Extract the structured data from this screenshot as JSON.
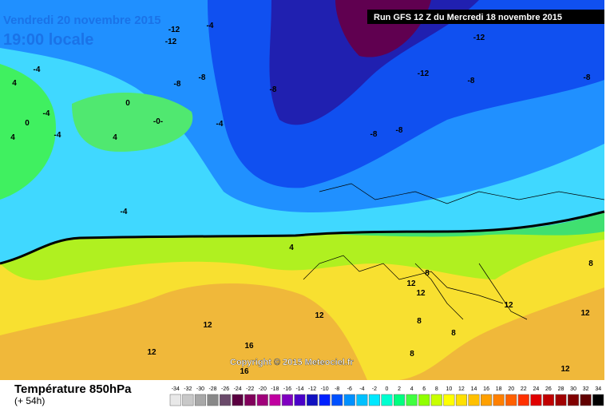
{
  "header": {
    "date": "Vendredi 20 novembre 2015",
    "time": "19:00 locale",
    "run": "Run GFS 12 Z du Mercredi 18 novembre 2015"
  },
  "map": {
    "contour_labels": [
      "-12",
      "-4",
      "-12",
      "-8",
      "-8",
      "-12",
      "-12",
      "-8",
      "-8",
      "-8",
      "-8",
      "-8",
      "-4",
      "-4",
      "-4",
      "0",
      "-0-",
      "4",
      "4",
      "-4",
      "4",
      "-4",
      "0",
      "4",
      "12",
      "8",
      "12",
      "12",
      "12",
      "8",
      "12",
      "8",
      "12",
      "8",
      "8",
      "16",
      "16",
      "12",
      "12"
    ],
    "copyright": "Copyright © 2015 Meteociel.fr"
  },
  "legend": {
    "title": "Température 850hPa",
    "subtitle": "(+ 54h)",
    "scale": [
      -34,
      -32,
      -30,
      -28,
      -26,
      -24,
      -22,
      -20,
      -18,
      -16,
      -14,
      -12,
      -10,
      -8,
      -6,
      -4,
      -2,
      0,
      2,
      4,
      6,
      8,
      10,
      12,
      14,
      16,
      18,
      20,
      22,
      24,
      26,
      28,
      30,
      32,
      34
    ],
    "colors": [
      "#e8e8e8",
      "#c8c8c8",
      "#a8a8a8",
      "#888888",
      "#6a4a6a",
      "#5a0040",
      "#80005a",
      "#a0007a",
      "#c000a0",
      "#8000c0",
      "#4a00c8",
      "#1010c0",
      "#0020ff",
      "#0050ff",
      "#0090ff",
      "#00c0ff",
      "#00e8ff",
      "#00ffd0",
      "#00ff80",
      "#40ff40",
      "#90ff00",
      "#c8ff00",
      "#ffff00",
      "#ffe000",
      "#ffc000",
      "#ffa000",
      "#ff8000",
      "#ff6000",
      "#ff3000",
      "#e00000",
      "#c00000",
      "#a00000",
      "#800000",
      "#600000",
      "#000000"
    ]
  }
}
